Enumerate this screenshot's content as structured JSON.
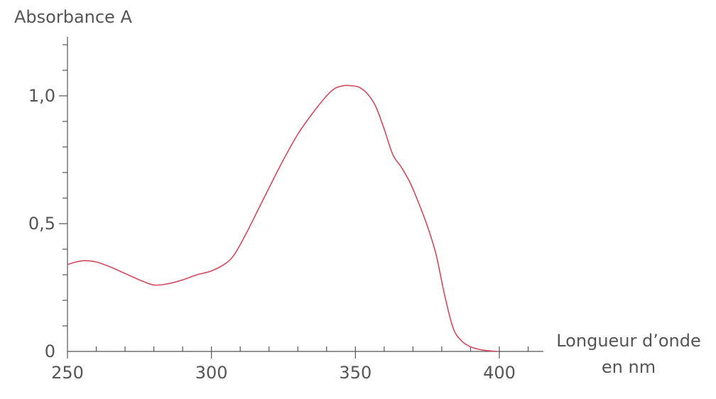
{
  "chart_data": {
    "type": "line",
    "title": "",
    "ylabel": "Absorbance A",
    "xlabel_lines": [
      "Longueur d’onde",
      "en nm"
    ],
    "xlim": [
      250,
      415
    ],
    "ylim": [
      0,
      1.22
    ],
    "x_ticks": [
      250,
      300,
      350,
      400
    ],
    "x_tick_labels": [
      "250",
      "300",
      "350",
      "400"
    ],
    "y_ticks": [
      0,
      0.5,
      1.0
    ],
    "y_tick_labels": [
      "0",
      "0,5",
      "1,0"
    ],
    "grid": false,
    "series_color": "#d6485c",
    "axis_color": "#555555",
    "series": [
      {
        "x": [
          250,
          253,
          256,
          260,
          265,
          270,
          275,
          280,
          285,
          290,
          295,
          300,
          305,
          308,
          312,
          316,
          320,
          325,
          330,
          335,
          340,
          343,
          346,
          348,
          351,
          354,
          357,
          360,
          363,
          366,
          369,
          372,
          375,
          378,
          381,
          384,
          387,
          390,
          393,
          396,
          399
        ],
        "y": [
          0.34,
          0.35,
          0.355,
          0.35,
          0.33,
          0.305,
          0.28,
          0.26,
          0.265,
          0.28,
          0.3,
          0.315,
          0.345,
          0.38,
          0.46,
          0.55,
          0.64,
          0.75,
          0.85,
          0.93,
          1.0,
          1.03,
          1.04,
          1.04,
          1.035,
          1.01,
          0.96,
          0.87,
          0.77,
          0.72,
          0.66,
          0.58,
          0.49,
          0.38,
          0.22,
          0.09,
          0.04,
          0.018,
          0.008,
          0.003,
          0.0
        ]
      }
    ]
  }
}
